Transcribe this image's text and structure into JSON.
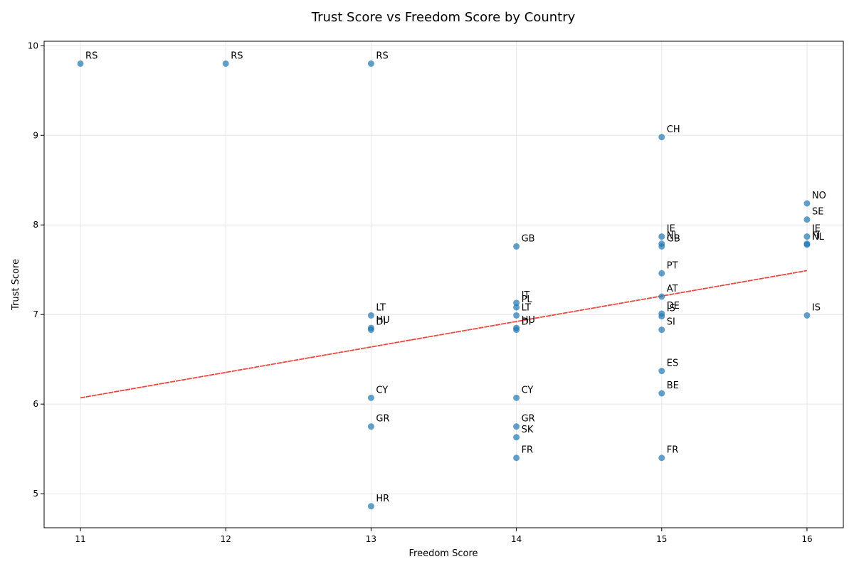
{
  "chart_data": {
    "type": "scatter",
    "title": "Trust Score vs Freedom Score by Country",
    "xlabel": "Freedom Score",
    "ylabel": "Trust Score",
    "xlim": [
      10.75,
      16.25
    ],
    "ylim": [
      4.62,
      10.05
    ],
    "xticks": [
      "11",
      "12",
      "13",
      "14",
      "15",
      "16"
    ],
    "yticks": [
      "5",
      "6",
      "7",
      "8",
      "9",
      "10"
    ],
    "grid": true,
    "point_color": "#1f77b4",
    "trend_color": "#e8372c",
    "trend_line": {
      "x": [
        11,
        16
      ],
      "y": [
        6.07,
        7.49
      ]
    },
    "points": [
      {
        "x": 11,
        "y": 9.8,
        "label": "RS"
      },
      {
        "x": 12,
        "y": 9.8,
        "label": "RS"
      },
      {
        "x": 13,
        "y": 9.8,
        "label": "RS"
      },
      {
        "x": 13,
        "y": 6.99,
        "label": "LT"
      },
      {
        "x": 13,
        "y": 6.85,
        "label": "HU"
      },
      {
        "x": 13,
        "y": 6.83,
        "label": "DI"
      },
      {
        "x": 13,
        "y": 6.07,
        "label": "CY"
      },
      {
        "x": 13,
        "y": 5.75,
        "label": "GR"
      },
      {
        "x": 13,
        "y": 4.86,
        "label": "HR"
      },
      {
        "x": 14,
        "y": 7.76,
        "label": "GB"
      },
      {
        "x": 14,
        "y": 7.13,
        "label": "IT"
      },
      {
        "x": 14,
        "y": 7.08,
        "label": "PL"
      },
      {
        "x": 14,
        "y": 6.99,
        "label": "LT"
      },
      {
        "x": 14,
        "y": 6.85,
        "label": "HU"
      },
      {
        "x": 14,
        "y": 6.83,
        "label": "DI"
      },
      {
        "x": 14,
        "y": 6.07,
        "label": "CY"
      },
      {
        "x": 14,
        "y": 5.75,
        "label": "GR"
      },
      {
        "x": 14,
        "y": 5.63,
        "label": "SK"
      },
      {
        "x": 14,
        "y": 5.4,
        "label": "FR"
      },
      {
        "x": 15,
        "y": 8.98,
        "label": "CH"
      },
      {
        "x": 15,
        "y": 7.87,
        "label": "IE"
      },
      {
        "x": 15,
        "y": 7.79,
        "label": "NL"
      },
      {
        "x": 15,
        "y": 7.76,
        "label": "GB"
      },
      {
        "x": 15,
        "y": 7.46,
        "label": "PT"
      },
      {
        "x": 15,
        "y": 7.2,
        "label": "AT"
      },
      {
        "x": 15,
        "y": 7.01,
        "label": "DE"
      },
      {
        "x": 15,
        "y": 6.98,
        "label": "IS"
      },
      {
        "x": 15,
        "y": 6.83,
        "label": "SI"
      },
      {
        "x": 15,
        "y": 6.37,
        "label": "ES"
      },
      {
        "x": 15,
        "y": 6.12,
        "label": "BE"
      },
      {
        "x": 15,
        "y": 5.4,
        "label": "FR"
      },
      {
        "x": 16,
        "y": 8.24,
        "label": "NO"
      },
      {
        "x": 16,
        "y": 8.06,
        "label": "SE"
      },
      {
        "x": 16,
        "y": 7.87,
        "label": "IE"
      },
      {
        "x": 16,
        "y": 7.79,
        "label": "FI"
      },
      {
        "x": 16,
        "y": 7.78,
        "label": "NL"
      },
      {
        "x": 16,
        "y": 6.99,
        "label": "IS"
      }
    ]
  }
}
